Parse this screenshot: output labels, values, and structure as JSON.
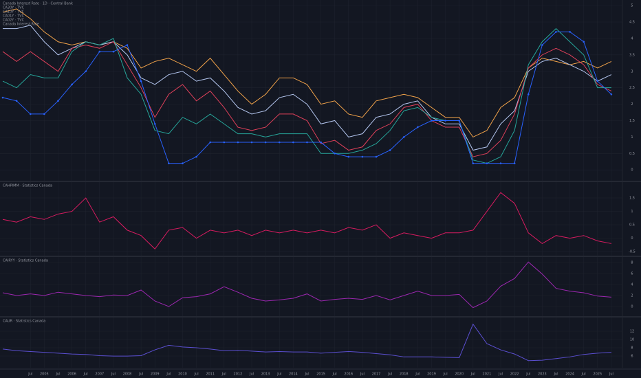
{
  "chart_data": [
    {
      "type": "line",
      "title": "Canada Interest Rate · 1D · Central Bank",
      "xlim": [
        2003.4,
        2025.9
      ],
      "ylim": [
        -0.33,
        5.17
      ],
      "yticks": [
        0,
        0.5,
        1,
        1.5,
        2,
        2.5,
        3,
        3.5,
        4,
        4.5,
        5
      ],
      "grid": true,
      "x": [
        2003.5,
        2004,
        2004.5,
        2005,
        2005.5,
        2006,
        2006.5,
        2007,
        2007.5,
        2008,
        2008.5,
        2009,
        2009.5,
        2010,
        2010.5,
        2011,
        2011.5,
        2012,
        2012.5,
        2013,
        2013.5,
        2014,
        2014.5,
        2015,
        2015.5,
        2016,
        2016.5,
        2017,
        2017.5,
        2018,
        2018.5,
        2019,
        2019.5,
        2020,
        2020.5,
        2021,
        2021.5,
        2022,
        2022.5,
        2023,
        2023.5,
        2024,
        2024.5,
        2025,
        2025.5
      ],
      "series": [
        {
          "name": "CA30Y · TVC",
          "color": "#f2a34a",
          "values": [
            4.8,
            4.9,
            4.6,
            4.2,
            3.9,
            3.8,
            3.9,
            3.8,
            3.9,
            3.7,
            3.1,
            3.3,
            3.4,
            3.2,
            3.0,
            3.4,
            2.9,
            2.4,
            2.0,
            2.3,
            2.8,
            2.8,
            2.6,
            2.0,
            2.1,
            1.7,
            1.6,
            2.1,
            2.2,
            2.3,
            2.2,
            1.9,
            1.6,
            1.6,
            1.0,
            1.2,
            1.9,
            2.2,
            3.1,
            3.4,
            3.3,
            3.2,
            3.3,
            3.1,
            3.3
          ]
        },
        {
          "name": "CA10Y · TVC",
          "color": "#b4c6ef",
          "values": [
            4.3,
            4.3,
            4.4,
            3.9,
            3.5,
            3.7,
            3.9,
            3.8,
            3.9,
            3.5,
            2.8,
            2.6,
            2.9,
            3.0,
            2.7,
            2.8,
            2.4,
            1.9,
            1.7,
            1.8,
            2.2,
            2.3,
            2.0,
            1.4,
            1.5,
            1.0,
            1.1,
            1.6,
            1.7,
            2.0,
            2.1,
            1.6,
            1.4,
            1.4,
            0.6,
            0.7,
            1.4,
            1.8,
            3.0,
            3.3,
            3.4,
            3.2,
            3.0,
            2.7,
            2.9
          ]
        },
        {
          "name": "CA01Y · TVC",
          "color": "#e0405a",
          "values": [
            3.6,
            3.3,
            3.6,
            3.3,
            3.0,
            3.7,
            3.8,
            3.7,
            3.9,
            3.2,
            2.5,
            1.6,
            2.3,
            2.6,
            2.1,
            2.4,
            1.9,
            1.3,
            1.2,
            1.3,
            1.7,
            1.7,
            1.5,
            0.8,
            0.9,
            0.6,
            0.7,
            1.2,
            1.4,
            1.9,
            2.0,
            1.5,
            1.3,
            1.3,
            0.4,
            0.5,
            0.9,
            1.7,
            3.1,
            3.5,
            3.7,
            3.5,
            3.2,
            2.6,
            2.4
          ]
        },
        {
          "name": "CA02Y · TVC",
          "color": "#26a69a",
          "values": [
            2.7,
            2.5,
            2.9,
            2.8,
            2.8,
            3.6,
            3.9,
            3.8,
            4.0,
            2.8,
            2.3,
            1.2,
            1.1,
            1.6,
            1.4,
            1.7,
            1.4,
            1.1,
            1.1,
            1.0,
            1.1,
            1.1,
            1.1,
            0.5,
            0.5,
            0.5,
            0.6,
            0.8,
            1.2,
            1.8,
            1.9,
            1.6,
            1.5,
            1.5,
            0.3,
            0.2,
            0.4,
            1.2,
            3.2,
            3.9,
            4.3,
            3.9,
            3.5,
            2.5,
            2.5
          ]
        },
        {
          "name": "Canada Interest Rate",
          "color": "#2962ff",
          "values": [
            2.2,
            2.1,
            1.7,
            1.7,
            2.1,
            2.6,
            3.0,
            3.6,
            3.6,
            3.8,
            2.7,
            1.4,
            0.2,
            0.2,
            0.4,
            0.84,
            0.84,
            0.84,
            0.84,
            0.84,
            0.84,
            0.84,
            0.84,
            0.84,
            0.5,
            0.4,
            0.4,
            0.4,
            0.6,
            1.0,
            1.3,
            1.5,
            1.5,
            1.5,
            0.2,
            0.2,
            0.2,
            0.2,
            2.3,
            3.8,
            4.2,
            4.2,
            3.9,
            2.7,
            2.3
          ]
        }
      ]
    },
    {
      "type": "line",
      "title": "CAHPIMM · Statistics Canada",
      "xlim": [
        2003.4,
        2025.9
      ],
      "ylim": [
        -0.65,
        2.09
      ],
      "yticks": [
        -0.5,
        0,
        0.5,
        1,
        1.5
      ],
      "grid": true,
      "x": [
        2003.5,
        2004,
        2004.5,
        2005,
        2005.5,
        2006,
        2006.5,
        2007,
        2007.5,
        2008,
        2008.5,
        2009,
        2009.5,
        2010,
        2010.5,
        2011,
        2011.5,
        2012,
        2012.5,
        2013,
        2013.5,
        2014,
        2014.5,
        2015,
        2015.5,
        2016,
        2016.5,
        2017,
        2017.5,
        2018,
        2018.5,
        2019,
        2019.5,
        2020,
        2020.5,
        2021,
        2021.5,
        2022,
        2022.5,
        2023,
        2023.5,
        2024,
        2024.5,
        2025,
        2025.5
      ],
      "series": [
        {
          "color": "#d81b60",
          "values": [
            0.7,
            0.6,
            0.8,
            0.7,
            0.9,
            1.0,
            1.5,
            0.6,
            0.8,
            0.3,
            0.1,
            -0.4,
            0.3,
            0.4,
            0.0,
            0.3,
            0.2,
            0.3,
            0.1,
            0.3,
            0.2,
            0.3,
            0.2,
            0.3,
            0.2,
            0.4,
            0.3,
            0.5,
            0.0,
            0.2,
            0.1,
            0.0,
            0.2,
            0.2,
            0.3,
            1.0,
            1.7,
            1.3,
            0.2,
            -0.2,
            0.1,
            0.0,
            0.1,
            -0.1,
            -0.2
          ]
        }
      ]
    },
    {
      "type": "line",
      "title": "CAIRYY · Statistics Canada",
      "xlim": [
        2003.4,
        2025.9
      ],
      "ylim": [
        -1.75,
        9
      ],
      "yticks": [
        0,
        2,
        4,
        6,
        8
      ],
      "grid": true,
      "x": [
        2003.5,
        2004,
        2004.5,
        2005,
        2005.5,
        2006,
        2006.5,
        2007,
        2007.5,
        2008,
        2008.5,
        2009,
        2009.5,
        2010,
        2010.5,
        2011,
        2011.5,
        2012,
        2012.5,
        2013,
        2013.5,
        2014,
        2014.5,
        2015,
        2015.5,
        2016,
        2016.5,
        2017,
        2017.5,
        2018,
        2018.5,
        2019,
        2019.5,
        2020,
        2020.5,
        2021,
        2021.5,
        2022,
        2022.5,
        2023,
        2023.5,
        2024,
        2024.5,
        2025,
        2025.5
      ],
      "series": [
        {
          "color": "#9c27b0",
          "values": [
            2.5,
            2.0,
            2.3,
            2.0,
            2.6,
            2.3,
            2.0,
            1.8,
            2.1,
            2.0,
            3.0,
            1.0,
            0.0,
            1.6,
            1.8,
            2.3,
            3.6,
            2.6,
            1.5,
            1.0,
            1.2,
            1.5,
            2.3,
            1.0,
            1.3,
            1.5,
            1.3,
            2.0,
            1.2,
            2.0,
            2.8,
            2.0,
            2.0,
            2.2,
            -0.2,
            1.0,
            3.7,
            5.1,
            8.1,
            5.9,
            3.3,
            2.8,
            2.5,
            1.9,
            1.7
          ]
        }
      ]
    },
    {
      "type": "line",
      "title": "CAUR · Statistics Canada",
      "xlim": [
        2003.4,
        2025.9
      ],
      "ylim": [
        3.2,
        15.3
      ],
      "yticks": [
        6,
        8,
        10,
        12
      ],
      "grid": true,
      "x": [
        2003.5,
        2004,
        2004.5,
        2005,
        2005.5,
        2006,
        2006.5,
        2007,
        2007.5,
        2008,
        2008.5,
        2009,
        2009.5,
        2010,
        2010.5,
        2011,
        2011.5,
        2012,
        2012.5,
        2013,
        2013.5,
        2014,
        2014.5,
        2015,
        2015.5,
        2016,
        2016.5,
        2017,
        2017.5,
        2018,
        2018.5,
        2019,
        2019.5,
        2020,
        2020.5,
        2021,
        2021.5,
        2022,
        2022.5,
        2023,
        2023.5,
        2024,
        2024.5,
        2025,
        2025.5
      ],
      "xticks": [
        {
          "value": 2004.5,
          "label": "Jul"
        },
        2005,
        {
          "value": 2005.5,
          "label": "Jul"
        },
        2006,
        {
          "value": 2006.5,
          "label": "Jul"
        },
        2007,
        {
          "value": 2007.5,
          "label": "Jul"
        },
        2008,
        {
          "value": 2008.5,
          "label": "Jul"
        },
        2009,
        {
          "value": 2009.5,
          "label": "Jul"
        },
        2010,
        {
          "value": 2010.5,
          "label": "Jul"
        },
        2011,
        {
          "value": 2011.5,
          "label": "Jul"
        },
        2012,
        {
          "value": 2012.5,
          "label": "Jul"
        },
        2013,
        {
          "value": 2013.5,
          "label": "Jul"
        },
        2014,
        {
          "value": 2014.5,
          "label": "Jul"
        },
        2015,
        {
          "value": 2015.5,
          "label": "Jul"
        },
        2016,
        {
          "value": 2016.5,
          "label": "Jul"
        },
        2017,
        {
          "value": 2017.5,
          "label": "Jul"
        },
        2018,
        {
          "value": 2018.5,
          "label": "Jul"
        },
        2019,
        {
          "value": 2019.5,
          "label": "Jul"
        },
        2020,
        {
          "value": 2020.5,
          "label": "Jul"
        },
        2021,
        {
          "value": 2021.5,
          "label": "Jul"
        },
        2022,
        {
          "value": 2022.5,
          "label": "Jul"
        },
        2023,
        {
          "value": 2023.5,
          "label": "Jul"
        },
        2024,
        {
          "value": 2024.5,
          "label": "Jul"
        },
        2025,
        {
          "value": 2025.5,
          "label": "Jul"
        }
      ],
      "series": [
        {
          "color": "#5b4fd1",
          "values": [
            7.7,
            7.3,
            7.1,
            6.9,
            6.7,
            6.5,
            6.4,
            6.1,
            6.0,
            6.0,
            6.1,
            7.5,
            8.6,
            8.2,
            8.0,
            7.7,
            7.3,
            7.4,
            7.2,
            7.0,
            7.1,
            7.0,
            7.0,
            6.7,
            6.9,
            7.1,
            6.9,
            6.6,
            6.3,
            5.8,
            5.8,
            5.8,
            5.7,
            5.6,
            13.7,
            9.0,
            7.5,
            6.5,
            4.9,
            5.0,
            5.4,
            5.8,
            6.4,
            6.7,
            6.9
          ]
        }
      ]
    }
  ]
}
